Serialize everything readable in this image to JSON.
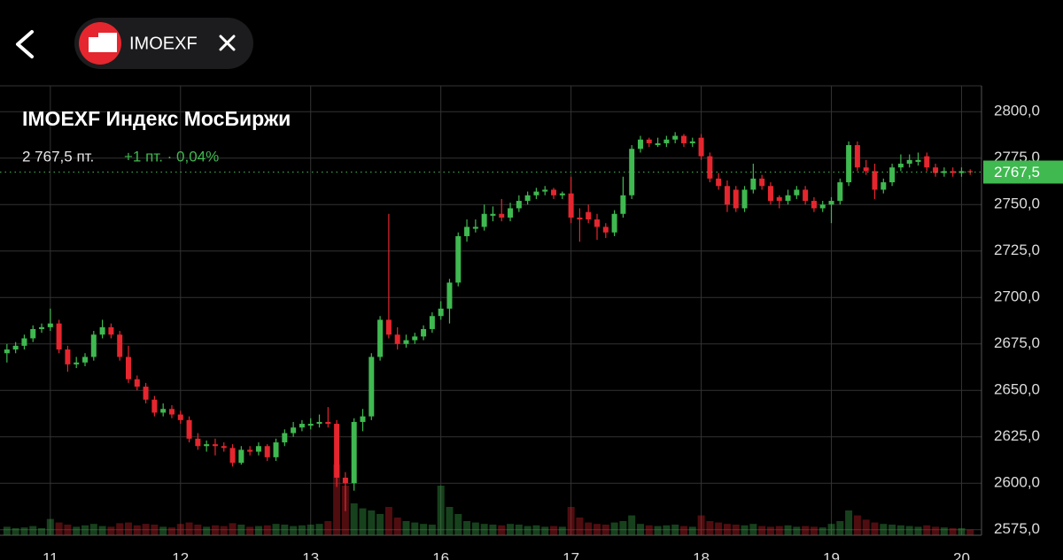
{
  "header": {
    "ticker": "IMOEXF"
  },
  "chart_data": {
    "type": "candlestick",
    "title": "IMOEXF Индекс МосБиржи",
    "price_text": "2 767,5 пт.",
    "change_text": "+1 пт. · 0,04%",
    "last_price": {
      "value": 2767.5,
      "label": "2767,5"
    },
    "up_color": "#3fb950",
    "down_color": "#e5262e",
    "xlim": [
      -5.8,
      107.3
    ],
    "xticks": [
      {
        "value": 0,
        "label": "11"
      },
      {
        "value": 15,
        "label": "12"
      },
      {
        "value": 30,
        "label": "13"
      },
      {
        "value": 45,
        "label": "16"
      },
      {
        "value": 60,
        "label": "17"
      },
      {
        "value": 75,
        "label": "18"
      },
      {
        "value": 90,
        "label": "19"
      },
      {
        "value": 105,
        "label": "20"
      }
    ],
    "ylim": [
      2562.5,
      2812.5
    ],
    "yticks": [
      {
        "value": 2575,
        "label": "2575,0"
      },
      {
        "value": 2600,
        "label": "2600,0"
      },
      {
        "value": 2625,
        "label": "2625,0"
      },
      {
        "value": 2650,
        "label": "2650,0"
      },
      {
        "value": 2675,
        "label": "2675,0"
      },
      {
        "value": 2700,
        "label": "2700,0"
      },
      {
        "value": 2725,
        "label": "2725,0"
      },
      {
        "value": 2750,
        "label": "2750,0"
      },
      {
        "value": 2775,
        "label": "2775,0"
      },
      {
        "value": 2800,
        "label": "2800,0"
      }
    ],
    "grid": true,
    "x": [
      -5,
      -4,
      -3,
      -2,
      -1,
      0,
      1,
      2,
      3,
      4,
      5,
      6,
      7,
      8,
      9,
      10,
      11,
      12,
      13,
      14,
      15,
      16,
      17,
      18,
      19,
      20,
      21,
      22,
      23,
      24,
      25,
      26,
      27,
      28,
      29,
      30,
      31,
      32,
      33,
      34,
      35,
      36,
      37,
      38,
      39,
      40,
      41,
      42,
      43,
      44,
      45,
      46,
      47,
      48,
      49,
      50,
      51,
      52,
      53,
      54,
      55,
      56,
      57,
      58,
      59,
      60,
      61,
      62,
      63,
      64,
      65,
      66,
      67,
      68,
      69,
      70,
      71,
      72,
      73,
      74,
      75,
      76,
      77,
      78,
      79,
      80,
      81,
      82,
      83,
      84,
      85,
      86,
      87,
      88,
      89,
      90,
      91,
      92,
      93,
      94,
      95,
      96,
      97,
      98,
      99,
      100,
      101,
      102,
      103,
      104,
      105,
      106
    ],
    "candles": [
      [
        2670,
        2675,
        2665,
        2672
      ],
      [
        2672,
        2676,
        2670,
        2674
      ],
      [
        2674,
        2680,
        2672,
        2678
      ],
      [
        2678,
        2685,
        2676,
        2683
      ],
      [
        2683,
        2686,
        2681,
        2684
      ],
      [
        2684,
        2694,
        2682,
        2686
      ],
      [
        2686,
        2688,
        2670,
        2672
      ],
      [
        2672,
        2674,
        2660,
        2664
      ],
      [
        2664,
        2668,
        2662,
        2665
      ],
      [
        2665,
        2670,
        2663,
        2668
      ],
      [
        2668,
        2682,
        2666,
        2680
      ],
      [
        2680,
        2688,
        2678,
        2684
      ],
      [
        2684,
        2686,
        2678,
        2680
      ],
      [
        2680,
        2682,
        2666,
        2668
      ],
      [
        2668,
        2674,
        2654,
        2656
      ],
      [
        2656,
        2658,
        2650,
        2652
      ],
      [
        2652,
        2654,
        2643,
        2645
      ],
      [
        2645,
        2647,
        2636,
        2638
      ],
      [
        2638,
        2643,
        2636,
        2640
      ],
      [
        2640,
        2642,
        2635,
        2637
      ],
      [
        2637,
        2639,
        2632,
        2634
      ],
      [
        2634,
        2636,
        2622,
        2624
      ],
      [
        2624,
        2627,
        2618,
        2620
      ],
      [
        2620,
        2623,
        2617,
        2621
      ],
      [
        2621,
        2624,
        2615,
        2620
      ],
      [
        2620,
        2622,
        2617,
        2619
      ],
      [
        2619,
        2621,
        2609,
        2611
      ],
      [
        2611,
        2620,
        2610,
        2618
      ],
      [
        2618,
        2620,
        2615,
        2617
      ],
      [
        2617,
        2622,
        2615,
        2620
      ],
      [
        2620,
        2621,
        2612,
        2614
      ],
      [
        2614,
        2624,
        2612,
        2622
      ],
      [
        2622,
        2629,
        2620,
        2627
      ],
      [
        2627,
        2633,
        2625,
        2630
      ],
      [
        2630,
        2634,
        2628,
        2632
      ],
      [
        2631,
        2635,
        2629,
        2632
      ],
      [
        2632,
        2637,
        2630,
        2633
      ],
      [
        2633,
        2641,
        2630,
        2632
      ],
      [
        2632,
        2634,
        2598,
        2603
      ],
      [
        2603,
        2606,
        2585,
        2600
      ],
      [
        2600,
        2635,
        2596,
        2633
      ],
      [
        2633,
        2640,
        2628,
        2636
      ],
      [
        2636,
        2670,
        2634,
        2668
      ],
      [
        2668,
        2690,
        2666,
        2688
      ],
      [
        2688,
        2745,
        2678,
        2680
      ],
      [
        2680,
        2684,
        2672,
        2675
      ],
      [
        2675,
        2680,
        2673,
        2677
      ],
      [
        2677,
        2681,
        2675,
        2679
      ],
      [
        2679,
        2685,
        2677,
        2683
      ],
      [
        2683,
        2692,
        2681,
        2690
      ],
      [
        2690,
        2698,
        2688,
        2694
      ],
      [
        2694,
        2710,
        2686,
        2708
      ],
      [
        2708,
        2735,
        2706,
        2733
      ],
      [
        2733,
        2742,
        2730,
        2738
      ],
      [
        2737,
        2742,
        2735,
        2738
      ],
      [
        2738,
        2750,
        2736,
        2745
      ],
      [
        2744,
        2749,
        2741,
        2745
      ],
      [
        2745,
        2753,
        2741,
        2743
      ],
      [
        2743,
        2751,
        2741,
        2748
      ],
      [
        2748,
        2755,
        2746,
        2752
      ],
      [
        2752,
        2757,
        2750,
        2755
      ],
      [
        2755,
        2759,
        2753,
        2757
      ],
      [
        2757,
        2760,
        2755,
        2758
      ],
      [
        2758,
        2759,
        2753,
        2755
      ],
      [
        2755,
        2757,
        2753,
        2756
      ],
      [
        2756,
        2765,
        2740,
        2743
      ],
      [
        2743,
        2748,
        2730,
        2742
      ],
      [
        2746,
        2750,
        2740,
        2742
      ],
      [
        2742,
        2745,
        2731,
        2738
      ],
      [
        2738,
        2740,
        2732,
        2735
      ],
      [
        2735,
        2747,
        2733,
        2745
      ],
      [
        2745,
        2765,
        2743,
        2755
      ],
      [
        2755,
        2782,
        2753,
        2780
      ],
      [
        2780,
        2787,
        2778,
        2785
      ],
      [
        2785,
        2786,
        2781,
        2783
      ],
      [
        2782,
        2786,
        2781,
        2783
      ],
      [
        2783,
        2787,
        2781,
        2785
      ],
      [
        2785,
        2789,
        2783,
        2787
      ],
      [
        2787,
        2788,
        2781,
        2783
      ],
      [
        2783,
        2786,
        2781,
        2784
      ],
      [
        2786,
        2788,
        2774,
        2776
      ],
      [
        2776,
        2778,
        2762,
        2764
      ],
      [
        2764,
        2767,
        2758,
        2760
      ],
      [
        2760,
        2763,
        2746,
        2750
      ],
      [
        2758,
        2760,
        2746,
        2748
      ],
      [
        2748,
        2760,
        2746,
        2758
      ],
      [
        2758,
        2772,
        2756,
        2764
      ],
      [
        2764,
        2766,
        2758,
        2760
      ],
      [
        2760,
        2762,
        2750,
        2752
      ],
      [
        2754,
        2755,
        2748,
        2752
      ],
      [
        2752,
        2758,
        2750,
        2755
      ],
      [
        2755,
        2760,
        2753,
        2758
      ],
      [
        2758,
        2760,
        2750,
        2752
      ],
      [
        2752,
        2754,
        2746,
        2748
      ],
      [
        2748,
        2752,
        2746,
        2750
      ],
      [
        2750,
        2754,
        2740,
        2752
      ],
      [
        2752,
        2764,
        2750,
        2762
      ],
      [
        2762,
        2784,
        2760,
        2782
      ],
      [
        2782,
        2784,
        2768,
        2770
      ],
      [
        2770,
        2774,
        2766,
        2768
      ],
      [
        2768,
        2772,
        2753,
        2758
      ],
      [
        2758,
        2764,
        2756,
        2762
      ],
      [
        2762,
        2772,
        2760,
        2770
      ],
      [
        2770,
        2777,
        2768,
        2772
      ],
      [
        2772,
        2777,
        2770,
        2774
      ],
      [
        2773,
        2778,
        2771,
        2774
      ],
      [
        2776,
        2778,
        2768,
        2770
      ],
      [
        2770,
        2772,
        2765,
        2767
      ],
      [
        2767,
        2770,
        2765,
        2768
      ],
      [
        2768,
        2770,
        2765,
        2767
      ],
      [
        2767,
        2770,
        2765,
        2768
      ],
      [
        2768,
        2769,
        2766,
        2767.5
      ]
    ],
    "volumes": [
      1.2,
      1.0,
      1.1,
      1.3,
      1.0,
      2.3,
      1.8,
      1.5,
      1.2,
      1.4,
      1.6,
      1.3,
      1.2,
      1.7,
      1.8,
      1.4,
      1.6,
      1.5,
      1.2,
      1.1,
      1.6,
      1.8,
      1.5,
      1.2,
      1.4,
      1.3,
      1.7,
      1.5,
      1.2,
      1.3,
      1.4,
      1.6,
      1.5,
      1.3,
      1.4,
      1.5,
      1.6,
      2.0,
      10.0,
      7.0,
      4.5,
      3.8,
      3.5,
      3.0,
      4.0,
      2.5,
      2.0,
      1.8,
      1.6,
      1.5,
      7.0,
      4.0,
      3.0,
      2.0,
      1.8,
      1.6,
      1.5,
      1.4,
      1.6,
      1.5,
      1.3,
      1.4,
      1.2,
      1.3,
      1.2,
      4.0,
      2.5,
      1.8,
      1.6,
      1.5,
      1.8,
      2.0,
      2.8,
      1.6,
      1.4,
      1.3,
      1.4,
      1.5,
      1.3,
      1.2,
      2.8,
      2.0,
      1.8,
      1.6,
      1.5,
      1.4,
      1.6,
      1.3,
      1.2,
      1.3,
      1.4,
      1.2,
      1.3,
      1.2,
      1.1,
      1.6,
      2.0,
      3.5,
      2.8,
      2.2,
      1.8,
      1.6,
      1.5,
      1.4,
      1.3,
      1.2,
      1.4,
      1.2,
      1.1,
      1.0,
      1.0,
      0.8
    ]
  }
}
